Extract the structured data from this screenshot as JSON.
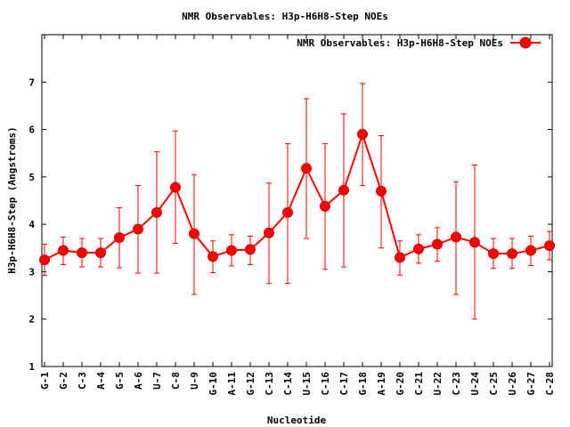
{
  "chart_data": {
    "type": "line",
    "title": "NMR Observables: H3p-H6H8-Step NOEs",
    "xlabel": "Nucleotide",
    "ylabel": "H3p-H6H8-Step (Angstroms)",
    "ylim": [
      1,
      8
    ],
    "yticks": [
      1,
      2,
      3,
      4,
      5,
      6,
      7
    ],
    "grid": false,
    "legend_position": "top-right",
    "color": "#ff0000",
    "categories": [
      "G-1",
      "G-2",
      "C-3",
      "A-4",
      "G-5",
      "A-6",
      "U-7",
      "C-8",
      "U-9",
      "G-10",
      "A-11",
      "G-12",
      "C-13",
      "C-14",
      "U-15",
      "C-16",
      "C-17",
      "G-18",
      "A-19",
      "G-20",
      "C-21",
      "U-22",
      "C-23",
      "U-24",
      "C-25",
      "U-26",
      "G-27",
      "C-28"
    ],
    "series": [
      {
        "name": "NMR Observables: H3p-H6H8-Step NOEs",
        "values": [
          3.25,
          3.45,
          3.4,
          3.4,
          3.72,
          3.9,
          4.25,
          4.78,
          3.8,
          3.32,
          3.45,
          3.47,
          3.82,
          4.25,
          5.18,
          4.38,
          4.72,
          5.9,
          4.7,
          3.3,
          3.48,
          3.58,
          3.73,
          3.62,
          3.38,
          3.38,
          3.45,
          3.55
        ],
        "error_low": [
          2.92,
          3.15,
          3.1,
          3.1,
          3.08,
          2.97,
          2.97,
          3.6,
          2.52,
          2.98,
          3.12,
          3.15,
          2.75,
          2.75,
          3.7,
          3.05,
          3.1,
          4.82,
          3.5,
          2.93,
          3.18,
          3.22,
          2.52,
          2.0,
          3.07,
          3.07,
          3.13,
          3.25
        ],
        "error_high": [
          3.58,
          3.73,
          3.7,
          3.7,
          4.35,
          4.82,
          5.53,
          5.97,
          5.05,
          3.65,
          3.78,
          3.75,
          4.87,
          5.7,
          6.65,
          5.7,
          6.33,
          6.97,
          5.87,
          3.65,
          3.78,
          3.93,
          4.9,
          5.25,
          3.7,
          3.7,
          3.75,
          3.85
        ]
      }
    ]
  }
}
